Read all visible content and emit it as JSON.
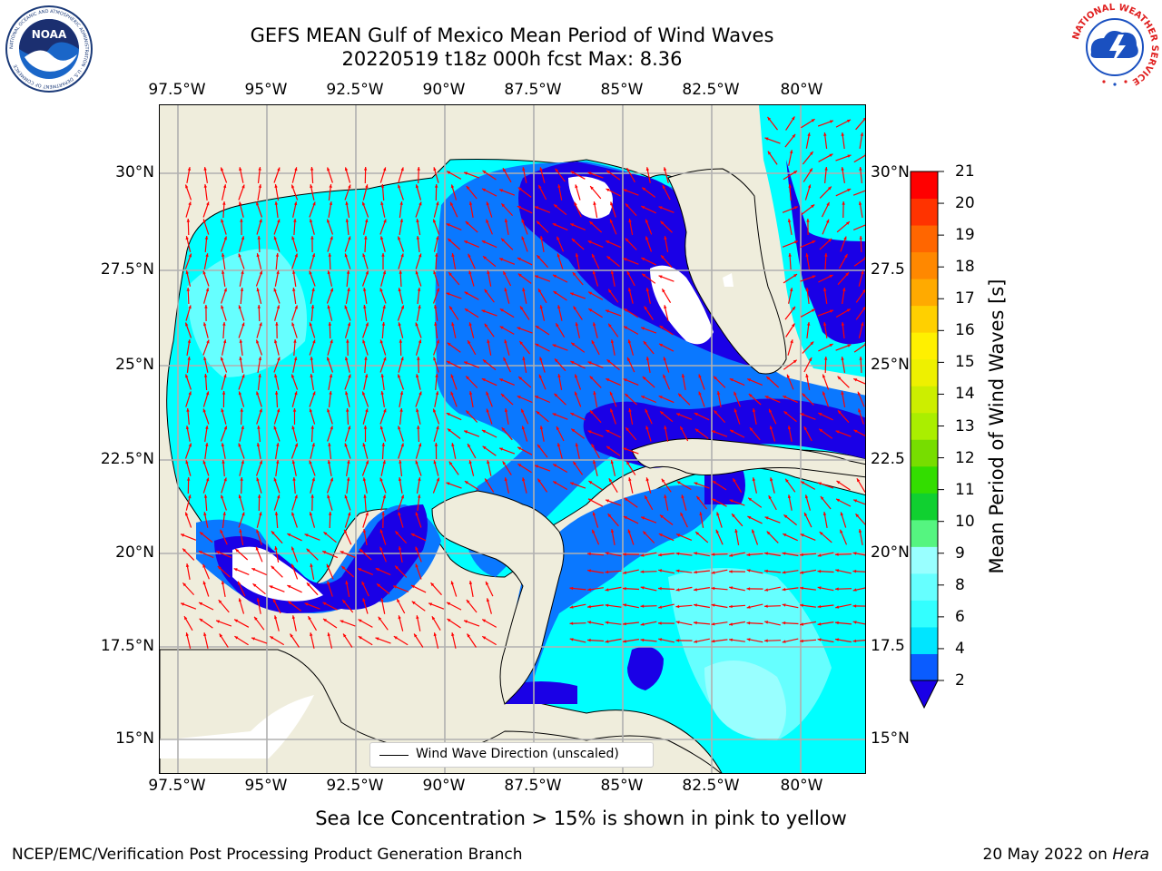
{
  "title_line1": "GEFS MEAN Gulf of Mexico Mean Period of Wind Waves",
  "title_line2": "20220519 t18z 000h fcst   Max: 8.36",
  "lon_labels": [
    "97.5°W",
    "95°W",
    "92.5°W",
    "90°W",
    "87.5°W",
    "85°W",
    "82.5°W",
    "80°W"
  ],
  "lat_labels_left": [
    "30°N",
    "27.5°N",
    "25°N",
    "22.5°N",
    "20°N",
    "17.5°N",
    "15°N"
  ],
  "lat_labels_right": [
    "30°N",
    "27.5",
    "25°N",
    "22.5",
    "20°N",
    "17.5",
    "15°N"
  ],
  "legend": {
    "label": "Wind Wave Direction (unscaled)"
  },
  "colorbar": {
    "label": "Mean Period of Wind Waves [s]",
    "ticks": [
      "21",
      "20",
      "19",
      "18",
      "17",
      "16",
      "15",
      "14",
      "13",
      "12",
      "11",
      "10",
      "9",
      "8",
      "6",
      "4",
      "2"
    ],
    "colors_bottom_to_top": [
      "#0a5cff",
      "#00e5ff",
      "#33ffff",
      "#66ffff",
      "#99ffff",
      "#55f580",
      "#10d030",
      "#33dd00",
      "#77dd00",
      "#aaee00",
      "#ccee00",
      "#eef000",
      "#fff000",
      "#ffd000",
      "#ffaa00",
      "#ff8800",
      "#ff6600",
      "#ff3300",
      "#ff0000"
    ],
    "extend_color": "#1a00e6"
  },
  "subtitle": "Sea Ice Concentration > 15% is shown in pink to yellow",
  "footer_left": "NCEP/EMC/Verification Post Processing Product Generation Branch",
  "footer_right_date": "20 May 2022 on ",
  "footer_right_host": "Hera",
  "logos": {
    "noaa": {
      "text": "NOAA",
      "ring": "NATIONAL OCEANIC AND ATMOSPHERIC ADMINISTRATION · U.S. DEPARTMENT OF COMMERCE"
    },
    "nws": {
      "ring": "NATIONAL WEATHER SERVICE"
    }
  },
  "colors": {
    "land": "#efeddc",
    "water_cyan": "#00ffff",
    "water_blue": "#0a78ff",
    "water_dark": "#1a00e6",
    "arrow": "#ff0000"
  }
}
